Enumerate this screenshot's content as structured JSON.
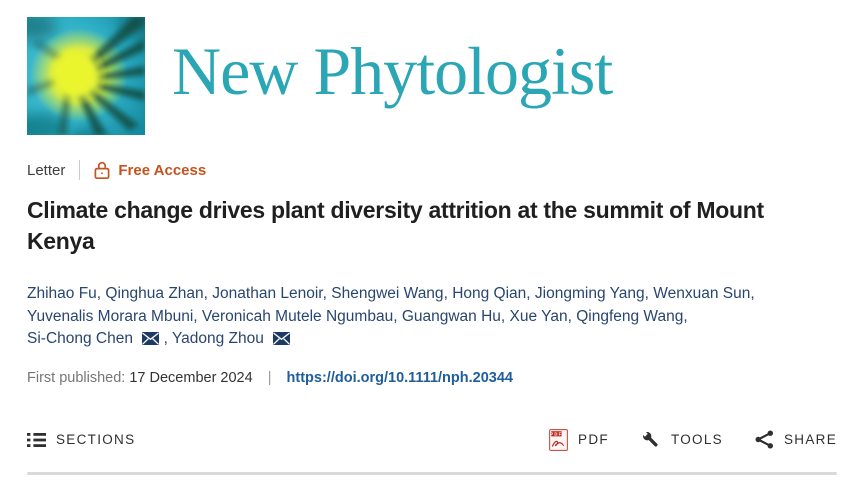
{
  "journal": {
    "name": "New Phytologist"
  },
  "article": {
    "type": "Letter",
    "access_label": "Free Access",
    "title": "Climate change drives plant diversity attrition at the summit of Mount Kenya",
    "authors": [
      {
        "name": "Zhihao Fu",
        "email": false
      },
      {
        "name": "Qinghua Zhan",
        "email": false
      },
      {
        "name": "Jonathan Lenoir",
        "email": false
      },
      {
        "name": "Shengwei Wang",
        "email": false
      },
      {
        "name": "Hong Qian",
        "email": false
      },
      {
        "name": "Jiongming Yang",
        "email": false
      },
      {
        "name": "Wenxuan Sun",
        "email": false
      },
      {
        "name": "Yuvenalis Morara Mbuni",
        "email": false
      },
      {
        "name": "Veronicah Mutele Ngumbau",
        "email": false
      },
      {
        "name": "Guangwan Hu",
        "email": false
      },
      {
        "name": "Xue Yan",
        "email": false
      },
      {
        "name": "Qingfeng Wang",
        "email": false
      },
      {
        "name": "Si-Chong Chen",
        "email": true
      },
      {
        "name": "Yadong Zhou",
        "email": true
      }
    ],
    "first_published": {
      "label": "First published:",
      "date": "17 December 2024",
      "separator": "|",
      "doi": "https://doi.org/10.1111/nph.20344"
    }
  },
  "toolbar": {
    "sections": "SECTIONS",
    "pdf": "PDF",
    "tools": "TOOLS",
    "share": "SHARE"
  },
  "icons": {
    "logo": "new-phytologist-starburst-logo",
    "access": "open-padlock-icon",
    "email": "envelope-icon",
    "sections": "list-icon",
    "pdf": "pdf-file-icon",
    "tools": "wrench-icon",
    "share": "share-nodes-icon"
  },
  "colors": {
    "journal_teal": "#2ba6b5",
    "access_orange": "#c4541f",
    "author_navy": "#29466f",
    "link_blue": "#1f5d9b",
    "title_dark": "#1f1f1f",
    "meta_gray": "#3d3d3d",
    "muted_gray": "#767676",
    "toolbar_gray": "#2f2f2f",
    "divider_gray": "#d9d9d9",
    "logo_cyan": "#2fb0c7",
    "logo_yellow": "#e8f233",
    "logo_dark_ray": "#114a40"
  }
}
